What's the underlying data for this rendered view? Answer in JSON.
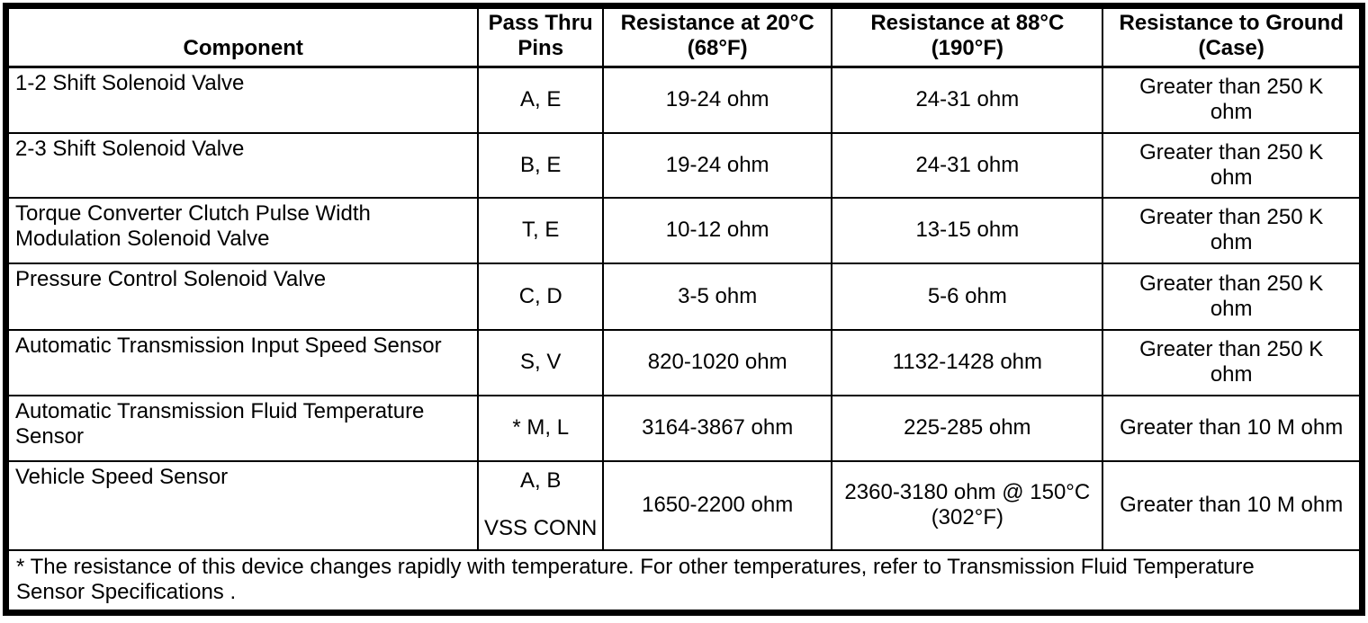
{
  "table": {
    "headers": [
      {
        "lines": [
          "Component"
        ]
      },
      {
        "lines": [
          "Pass Thru",
          "Pins"
        ]
      },
      {
        "lines": [
          "Resistance at 20°C",
          "(68°F)"
        ]
      },
      {
        "lines": [
          "Resistance at 88°C",
          "(190°F)"
        ]
      },
      {
        "lines": [
          "Resistance to Ground",
          "(Case)"
        ]
      }
    ],
    "rows": [
      {
        "component": [
          "1-2 Shift Solenoid Valve"
        ],
        "pins": [
          "A, E"
        ],
        "r20": [
          "19-24 ohm"
        ],
        "r88": [
          "24-31 ohm"
        ],
        "ground": [
          "Greater than 250 K",
          "ohm"
        ]
      },
      {
        "component": [
          "2-3 Shift Solenoid Valve"
        ],
        "pins": [
          "B, E"
        ],
        "r20": [
          "19-24 ohm"
        ],
        "r88": [
          "24-31 ohm"
        ],
        "ground": [
          "Greater than 250 K",
          "ohm"
        ]
      },
      {
        "component": [
          "Torque Converter Clutch Pulse Width",
          "Modulation Solenoid Valve"
        ],
        "pins": [
          "T, E"
        ],
        "r20": [
          "10-12 ohm"
        ],
        "r88": [
          "13-15 ohm"
        ],
        "ground": [
          "Greater than 250 K",
          "ohm"
        ]
      },
      {
        "component": [
          "Pressure Control Solenoid Valve"
        ],
        "pins": [
          "C, D"
        ],
        "r20": [
          "3-5 ohm"
        ],
        "r88": [
          "5-6 ohm"
        ],
        "ground": [
          "Greater than 250 K",
          "ohm"
        ]
      },
      {
        "component": [
          "Automatic Transmission Input Speed Sensor"
        ],
        "pins": [
          "S, V"
        ],
        "r20": [
          "820-1020 ohm"
        ],
        "r88": [
          "1132-1428 ohm"
        ],
        "ground": [
          "Greater than 250 K",
          "ohm"
        ]
      },
      {
        "component": [
          "Automatic Transmission Fluid Temperature",
          "Sensor"
        ],
        "pins": [
          "* M, L"
        ],
        "r20": [
          "3164-3867 ohm"
        ],
        "r88": [
          "225-285 ohm"
        ],
        "ground": [
          "Greater than 10 M ohm"
        ]
      },
      {
        "component": [
          "Vehicle Speed Sensor"
        ],
        "pins": [
          "A, B",
          "VSS CONN"
        ],
        "r20": [
          "1650-2200 ohm"
        ],
        "r88": [
          "2360-3180 ohm @ 150°C",
          "(302°F)"
        ],
        "ground": [
          "Greater than 10 M ohm"
        ]
      }
    ],
    "footnote_lines": [
      "* The resistance of this device changes rapidly with temperature. For other temperatures, refer to Transmission Fluid Temperature",
      "Sensor Specifications ."
    ]
  },
  "colors": {
    "border": "#000000",
    "text": "#000000",
    "background": "#ffffff"
  }
}
